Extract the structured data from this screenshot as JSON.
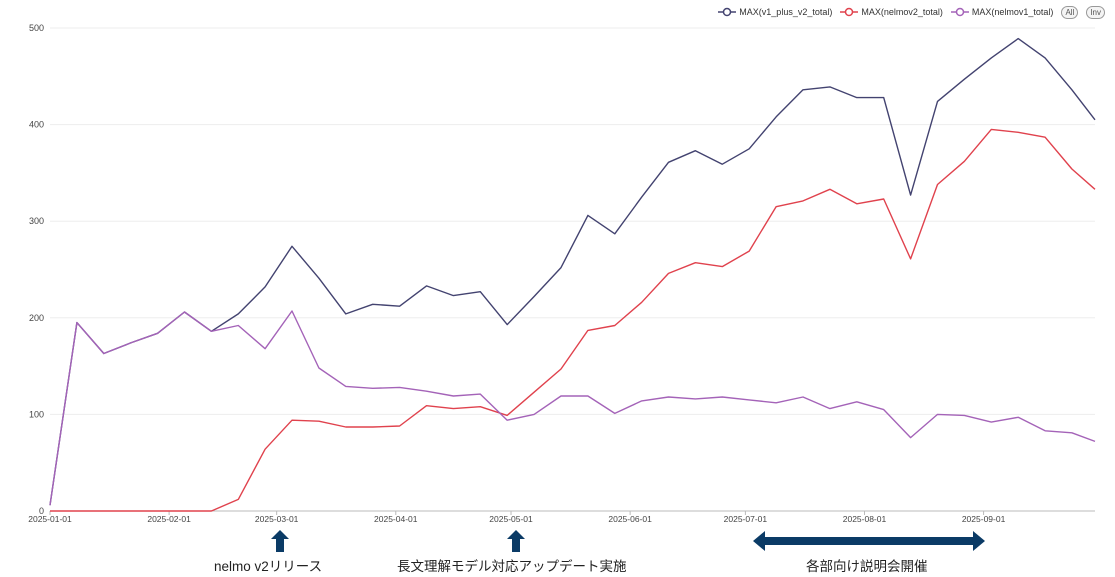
{
  "legend": {
    "items": [
      {
        "label": "MAX(v1_plus_v2_total)",
        "color": "#434370"
      },
      {
        "label": "MAX(nelmov2_total)",
        "color": "#e0424d"
      },
      {
        "label": "MAX(nelmov1_total)",
        "color": "#a463b8"
      }
    ],
    "all_label": "All",
    "inv_label": "Inv"
  },
  "annotations": [
    {
      "text": "nelmo v2リリース",
      "arrow": "up"
    },
    {
      "text": "長文理解モデル対応アップデート実施",
      "arrow": "up"
    },
    {
      "text": "各部向け説明会開催",
      "arrow": "double"
    }
  ],
  "chart_data": {
    "type": "line",
    "x_start": "2025-01-01",
    "x_end": "2025-09-30",
    "ylim": [
      0,
      500
    ],
    "yticks": [
      0,
      100,
      200,
      300,
      400,
      500
    ],
    "xticks": [
      "2025-01-01",
      "2025-02-01",
      "2025-03-01",
      "2025-04-01",
      "2025-05-01",
      "2025-06-01",
      "2025-07-01",
      "2025-08-01",
      "2025-09-01"
    ],
    "x": [
      "2025-01-01",
      "2025-01-08",
      "2025-01-15",
      "2025-01-22",
      "2025-01-29",
      "2025-02-05",
      "2025-02-12",
      "2025-02-19",
      "2025-02-26",
      "2025-03-05",
      "2025-03-12",
      "2025-03-19",
      "2025-03-26",
      "2025-04-02",
      "2025-04-09",
      "2025-04-16",
      "2025-04-23",
      "2025-04-30",
      "2025-05-07",
      "2025-05-14",
      "2025-05-21",
      "2025-05-28",
      "2025-06-04",
      "2025-06-11",
      "2025-06-18",
      "2025-06-25",
      "2025-07-02",
      "2025-07-09",
      "2025-07-16",
      "2025-07-23",
      "2025-07-30",
      "2025-08-06",
      "2025-08-13",
      "2025-08-20",
      "2025-08-27",
      "2025-09-03",
      "2025-09-10",
      "2025-09-17",
      "2025-09-24",
      "2025-09-30"
    ],
    "series": [
      {
        "name": "MAX(v1_plus_v2_total)",
        "color": "#434370",
        "values": [
          6,
          195,
          163,
          174,
          184,
          206,
          186,
          204,
          232,
          274,
          241,
          204,
          214,
          212,
          233,
          223,
          227,
          193,
          222,
          252,
          306,
          287,
          325,
          361,
          373,
          359,
          375,
          408,
          436,
          439,
          428,
          428,
          327,
          424,
          447,
          469,
          489,
          469,
          436,
          405
        ]
      },
      {
        "name": "MAX(nelmov2_total)",
        "color": "#e0424d",
        "values": [
          0,
          0,
          0,
          0,
          0,
          0,
          0,
          12,
          64,
          94,
          93,
          87,
          87,
          88,
          109,
          106,
          108,
          99,
          123,
          147,
          187,
          192,
          216,
          246,
          257,
          253,
          269,
          315,
          321,
          333,
          318,
          323,
          261,
          338,
          362,
          395,
          392,
          387,
          354,
          333
        ]
      },
      {
        "name": "MAX(nelmov1_total)",
        "color": "#a463b8",
        "values": [
          6,
          195,
          163,
          174,
          184,
          206,
          186,
          192,
          168,
          207,
          148,
          129,
          127,
          128,
          124,
          119,
          121,
          94,
          100,
          119,
          119,
          101,
          114,
          118,
          116,
          118,
          115,
          112,
          118,
          106,
          113,
          105,
          76,
          100,
          99,
          92,
          97,
          83,
          81,
          72
        ]
      }
    ]
  }
}
